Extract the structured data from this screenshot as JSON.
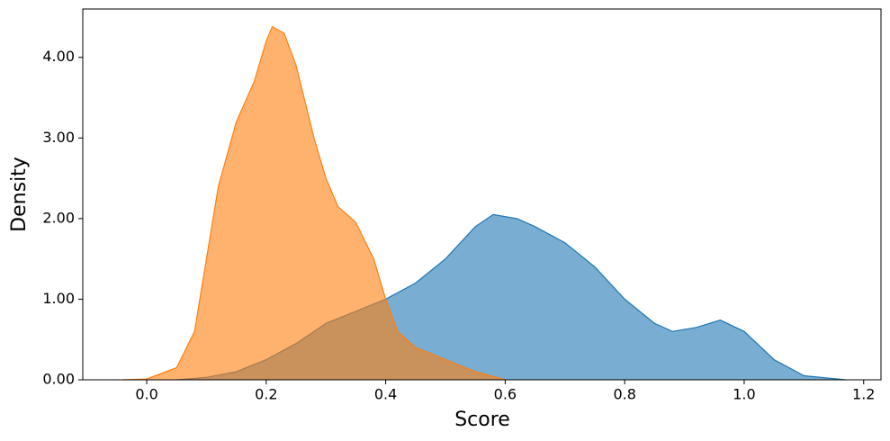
{
  "chart_data": {
    "type": "area",
    "x_label": "Score",
    "y_label": "Density",
    "xlim": [
      -0.107,
      1.229
    ],
    "ylim": [
      0,
      4.6
    ],
    "xticks": [
      {
        "value": 0,
        "label": "0.0"
      },
      0.2,
      0.4,
      0.6,
      0.8,
      {
        "value": 1,
        "label": "1.0"
      },
      1.2
    ],
    "yticks": [
      {
        "value": 0,
        "label": "0.00"
      },
      {
        "value": 1,
        "label": "1.00"
      },
      {
        "value": 2,
        "label": "2.00"
      },
      {
        "value": 3,
        "label": "3.00"
      },
      {
        "value": 4,
        "label": "4.00"
      }
    ],
    "series": [
      {
        "color": "#1f77b4",
        "x": [
          0.05,
          0.1,
          0.15,
          0.2,
          0.25,
          0.3,
          0.35,
          0.4,
          0.45,
          0.5,
          0.55,
          0.58,
          0.62,
          0.65,
          0.7,
          0.75,
          0.8,
          0.85,
          0.88,
          0.92,
          0.96,
          1.0,
          1.05,
          1.1,
          1.17
        ],
        "values": [
          0,
          0.03,
          0.1,
          0.25,
          0.45,
          0.7,
          0.85,
          1.0,
          1.2,
          1.5,
          1.9,
          2.05,
          2.0,
          1.9,
          1.7,
          1.4,
          1.0,
          0.7,
          0.6,
          0.65,
          0.74,
          0.6,
          0.25,
          0.05,
          0
        ]
      },
      {
        "color": "#ff7f0e",
        "x": [
          -0.04,
          0.0,
          0.05,
          0.08,
          0.1,
          0.12,
          0.15,
          0.18,
          0.2,
          0.21,
          0.23,
          0.25,
          0.28,
          0.3,
          0.32,
          0.35,
          0.38,
          0.4,
          0.42,
          0.45,
          0.5,
          0.55,
          0.6
        ],
        "values": [
          0,
          0.01,
          0.15,
          0.6,
          1.5,
          2.4,
          3.2,
          3.7,
          4.2,
          4.38,
          4.3,
          3.9,
          3.0,
          2.5,
          2.15,
          1.95,
          1.5,
          1.0,
          0.6,
          0.4,
          0.25,
          0.1,
          0
        ]
      }
    ]
  }
}
